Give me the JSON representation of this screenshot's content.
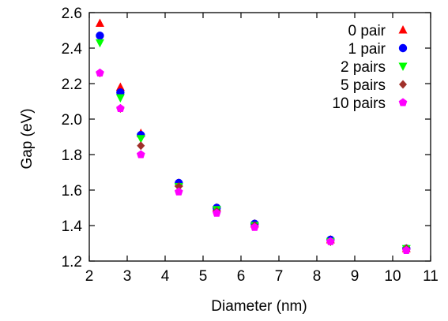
{
  "chart_data": {
    "type": "scatter",
    "xlabel": "Diameter (nm)",
    "ylabel": "Gap (eV)",
    "xlim": [
      2,
      11
    ],
    "ylim": [
      1.2,
      2.6
    ],
    "xticks": [
      2,
      3,
      4,
      5,
      6,
      7,
      8,
      9,
      10,
      11
    ],
    "yticks": [
      1.2,
      1.4,
      1.6,
      1.8,
      2.0,
      2.2,
      2.4,
      2.6
    ],
    "xtick_labels": [
      "2",
      "3",
      "4",
      "5",
      "6",
      "7",
      "8",
      "9",
      "10",
      "11"
    ],
    "ytick_labels": [
      "1.2",
      "1.4",
      "1.6",
      "1.8",
      "2.0",
      "2.2",
      "2.4",
      "2.6"
    ],
    "grid": false,
    "legend_position": "top-right",
    "series": [
      {
        "name": "0 pair",
        "marker": "triangle-up",
        "color": "#ff0000",
        "x": [
          2.28,
          2.82,
          3.36,
          4.36,
          5.36,
          6.36,
          8.36,
          10.36
        ],
        "y": [
          2.54,
          2.18,
          1.92,
          1.64,
          1.5,
          1.41,
          1.32,
          1.27
        ]
      },
      {
        "name": "1 pair",
        "marker": "circle",
        "color": "#0000ff",
        "x": [
          2.28,
          2.82,
          3.36,
          4.36,
          5.36,
          6.36,
          8.36,
          10.36
        ],
        "y": [
          2.47,
          2.15,
          1.91,
          1.64,
          1.5,
          1.41,
          1.32,
          1.27
        ]
      },
      {
        "name": "2 pairs",
        "marker": "triangle-down",
        "color": "#00ff00",
        "x": [
          2.28,
          2.82,
          3.36,
          4.36,
          5.36,
          6.36,
          8.36,
          10.36
        ],
        "y": [
          2.43,
          2.12,
          1.89,
          1.62,
          1.49,
          1.4,
          1.31,
          1.27
        ]
      },
      {
        "name": "5 pairs",
        "marker": "diamond",
        "color": "#a0302a",
        "x": [
          2.28,
          2.82,
          3.36,
          4.36,
          5.36,
          6.36,
          8.36,
          10.36
        ],
        "y": [
          2.26,
          2.06,
          1.85,
          1.62,
          1.48,
          1.4,
          1.31,
          1.27
        ]
      },
      {
        "name": "10 pairs",
        "marker": "pentagon",
        "color": "#ff00ff",
        "x": [
          2.28,
          2.82,
          3.36,
          4.36,
          5.36,
          6.36,
          8.36,
          10.36
        ],
        "y": [
          2.26,
          2.06,
          1.8,
          1.59,
          1.47,
          1.39,
          1.31,
          1.26
        ]
      }
    ]
  }
}
